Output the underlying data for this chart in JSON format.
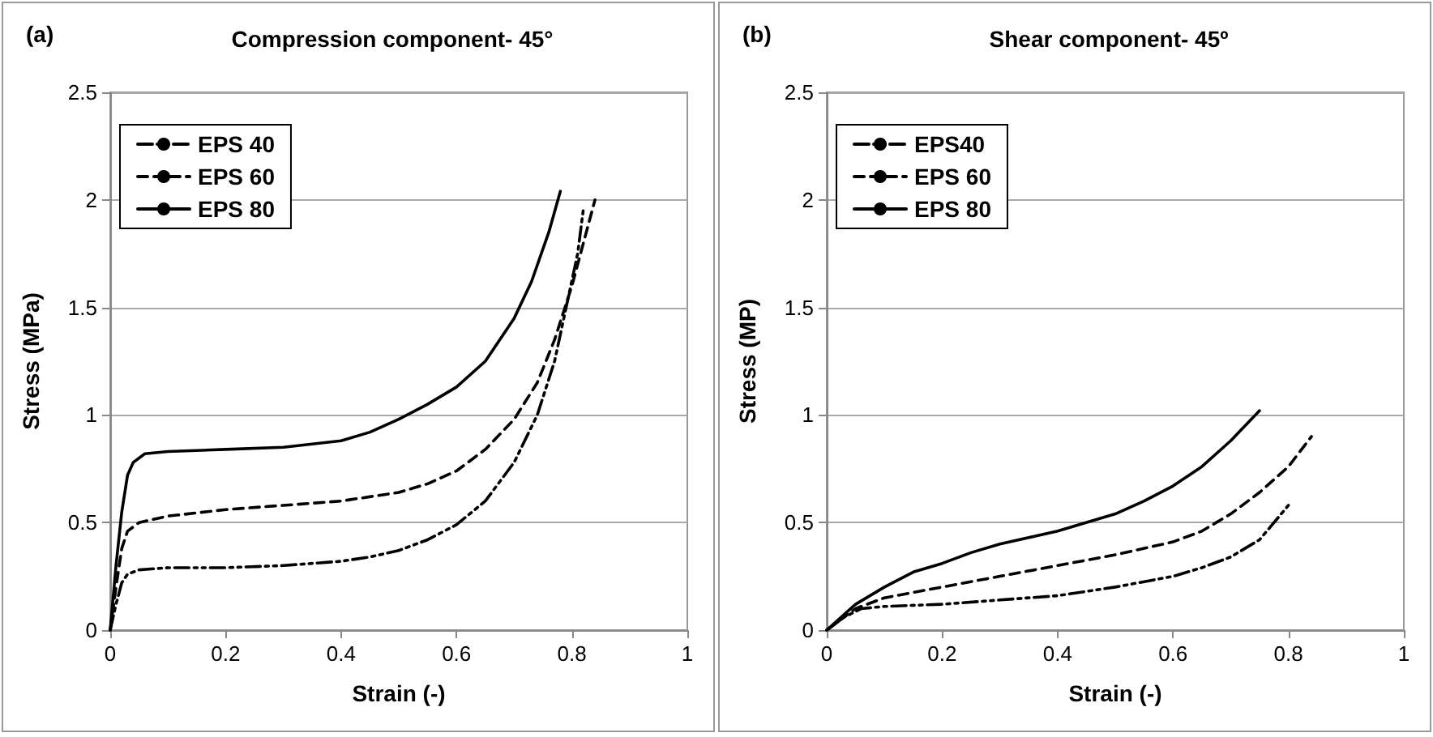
{
  "chart_data": [
    {
      "type": "line",
      "title": "Compression component- 45°",
      "xlabel": "Strain (-)",
      "ylabel": "Stress (MPa)",
      "annotations": [
        "(a)"
      ],
      "xlim": [
        0,
        1
      ],
      "xticks": [
        0,
        0.2,
        0.4,
        0.6,
        0.8,
        1
      ],
      "ylim": [
        0,
        2.5
      ],
      "yticks": [
        0,
        0.5,
        1,
        1.5,
        2,
        2.5
      ],
      "grid": "y",
      "legend": "top left",
      "marker": "none",
      "series": [
        {
          "name": "EPS 40",
          "color": "#000000",
          "line_style": "dotted",
          "x": [
            0,
            0.01,
            0.02,
            0.03,
            0.05,
            0.1,
            0.2,
            0.3,
            0.4,
            0.45,
            0.5,
            0.55,
            0.6,
            0.65,
            0.7,
            0.74,
            0.77,
            0.79,
            0.81,
            0.82
          ],
          "values": [
            0,
            0.12,
            0.22,
            0.26,
            0.28,
            0.29,
            0.29,
            0.3,
            0.32,
            0.34,
            0.37,
            0.42,
            0.49,
            0.6,
            0.78,
            1.0,
            1.25,
            1.5,
            1.75,
            1.96
          ]
        },
        {
          "name": "EPS 60",
          "color": "#000000",
          "line_style": "dashed",
          "x": [
            0,
            0.01,
            0.02,
            0.03,
            0.05,
            0.1,
            0.2,
            0.3,
            0.4,
            0.5,
            0.55,
            0.6,
            0.65,
            0.7,
            0.74,
            0.77,
            0.8,
            0.82,
            0.84
          ],
          "values": [
            0,
            0.2,
            0.38,
            0.46,
            0.5,
            0.53,
            0.56,
            0.58,
            0.6,
            0.64,
            0.68,
            0.74,
            0.84,
            0.98,
            1.15,
            1.35,
            1.6,
            1.8,
            2.0
          ]
        },
        {
          "name": "EPS 80",
          "color": "#000000",
          "line_style": "solid",
          "x": [
            0,
            0.01,
            0.02,
            0.03,
            0.04,
            0.06,
            0.1,
            0.2,
            0.3,
            0.4,
            0.45,
            0.5,
            0.55,
            0.6,
            0.65,
            0.7,
            0.73,
            0.76,
            0.78
          ],
          "values": [
            0,
            0.3,
            0.55,
            0.72,
            0.78,
            0.82,
            0.83,
            0.84,
            0.85,
            0.88,
            0.92,
            0.98,
            1.05,
            1.13,
            1.25,
            1.45,
            1.62,
            1.85,
            2.04
          ]
        }
      ]
    },
    {
      "type": "line",
      "title": "Shear component- 45º",
      "xlabel": "Strain (-)",
      "ylabel": "Stress (MP)",
      "annotations": [
        "(b)"
      ],
      "xlim": [
        0,
        1
      ],
      "xticks": [
        0,
        0.2,
        0.4,
        0.6,
        0.8,
        1
      ],
      "ylim": [
        0,
        2.5
      ],
      "yticks": [
        0,
        0.5,
        1,
        1.5,
        2,
        2.5
      ],
      "grid": "y",
      "legend": "top left",
      "marker": "none",
      "series": [
        {
          "name": "EPS40",
          "color": "#000000",
          "line_style": "dotted",
          "x": [
            0,
            0.03,
            0.06,
            0.1,
            0.2,
            0.3,
            0.4,
            0.5,
            0.6,
            0.65,
            0.7,
            0.75,
            0.8
          ],
          "values": [
            0,
            0.06,
            0.1,
            0.11,
            0.12,
            0.14,
            0.16,
            0.2,
            0.25,
            0.29,
            0.34,
            0.42,
            0.58
          ]
        },
        {
          "name": "EPS 60",
          "color": "#000000",
          "line_style": "dashed",
          "x": [
            0,
            0.05,
            0.1,
            0.2,
            0.3,
            0.4,
            0.5,
            0.6,
            0.65,
            0.7,
            0.75,
            0.8,
            0.84
          ],
          "values": [
            0,
            0.1,
            0.15,
            0.2,
            0.25,
            0.3,
            0.35,
            0.41,
            0.46,
            0.54,
            0.64,
            0.76,
            0.9
          ]
        },
        {
          "name": "EPS 80",
          "color": "#000000",
          "line_style": "solid",
          "x": [
            0,
            0.05,
            0.1,
            0.15,
            0.2,
            0.25,
            0.3,
            0.4,
            0.5,
            0.55,
            0.6,
            0.65,
            0.7,
            0.75
          ],
          "values": [
            0,
            0.12,
            0.2,
            0.27,
            0.31,
            0.36,
            0.4,
            0.46,
            0.54,
            0.6,
            0.67,
            0.76,
            0.88,
            1.02
          ]
        }
      ]
    }
  ]
}
